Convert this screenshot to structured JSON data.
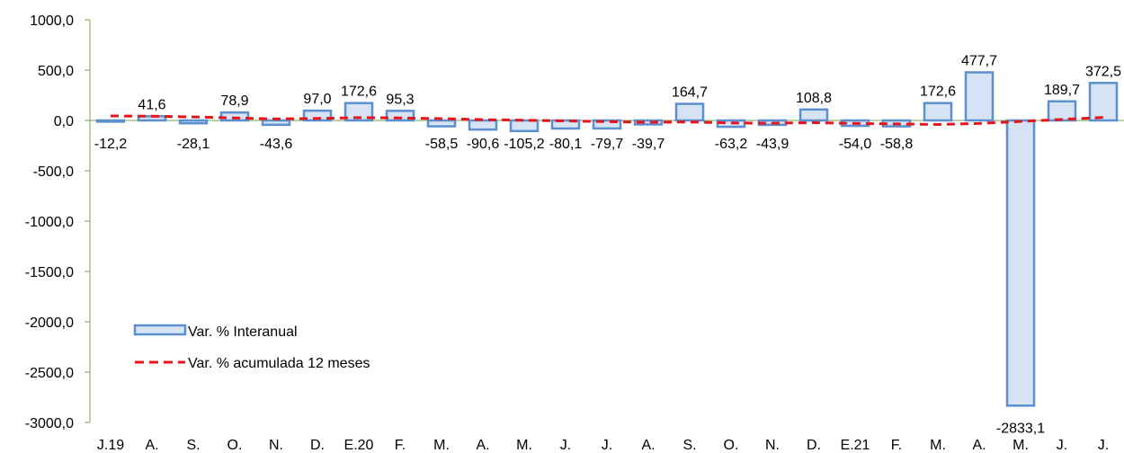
{
  "chart_data": {
    "type": "bar",
    "categories": [
      "J.19",
      "A.",
      "S.",
      "O.",
      "N.",
      "D.",
      "E.20",
      "F.",
      "M.",
      "A.",
      "M.",
      "J.",
      "J.",
      "A.",
      "S.",
      "O.",
      "N.",
      "D.",
      "E.21",
      "F.",
      "M.",
      "A.",
      "M.",
      "J.",
      "J."
    ],
    "series": [
      {
        "name": "Var. % Interanual",
        "type": "bar",
        "values": [
          -12.2,
          41.6,
          -28.1,
          78.9,
          -43.6,
          97.0,
          172.6,
          95.3,
          -58.5,
          -90.6,
          -105.2,
          -80.1,
          -79.7,
          -39.7,
          164.7,
          -63.2,
          -43.9,
          108.8,
          -54.0,
          -58.8,
          172.6,
          477.7,
          -2833.1,
          189.7,
          372.5
        ],
        "labels": [
          "-12,2",
          "41,6",
          "-28,1",
          "78,9",
          "-43,6",
          "97,0",
          "172,6",
          "95,3",
          "-58,5",
          "-90,6",
          "-105,2",
          "-80,1",
          "-79,7",
          "-39,7",
          "164,7",
          "-63,2",
          "-43,9",
          "108,8",
          "-54,0",
          "-58,8",
          "172,6",
          "477,7",
          "-2833,1",
          "189,7",
          "372,5"
        ]
      },
      {
        "name": "Var. % acumulada 12 meses",
        "type": "line",
        "values": [
          45,
          42,
          35,
          25,
          15,
          20,
          28,
          25,
          18,
          8,
          2,
          -5,
          -12,
          -18,
          -15,
          -25,
          -28,
          -22,
          -30,
          -35,
          -40,
          -30,
          -10,
          10,
          30
        ]
      }
    ],
    "y_ticks": [
      "1000,0",
      "500,0",
      "0,0",
      "-500,0",
      "-1000,0",
      "-1500,0",
      "-2000,0",
      "-2500,0",
      "-3000,0"
    ],
    "ylim": [
      -3000,
      1000
    ],
    "colors": {
      "bar_fill": "#d6e3f4",
      "bar_stroke": "#5b8fcf",
      "line": "#e8141b",
      "axis": "#7ea04d"
    },
    "legend_position": "lower-left"
  }
}
